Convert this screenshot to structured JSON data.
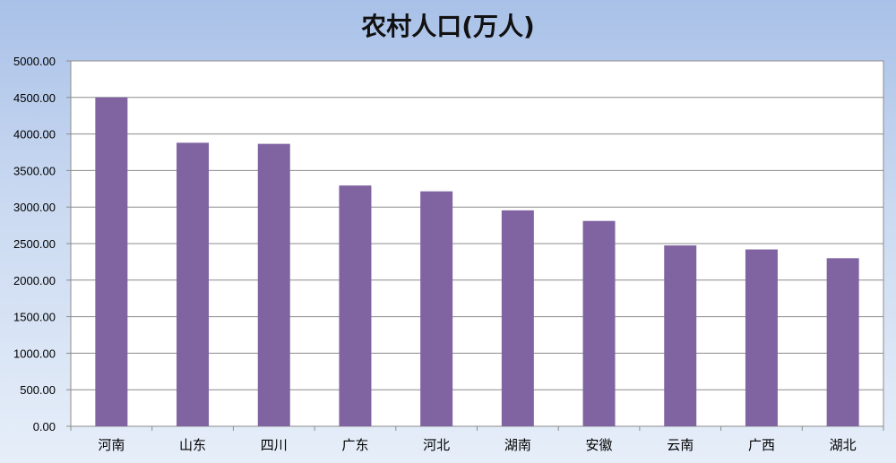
{
  "chart_data": {
    "type": "bar",
    "title": "农村人口(万人)",
    "categories": [
      "河南",
      "山东",
      "四川",
      "广东",
      "河北",
      "湖南",
      "安徽",
      "云南",
      "广西",
      "湖北"
    ],
    "values": [
      4500,
      3880,
      3865,
      3295,
      3215,
      2955,
      2810,
      2475,
      2420,
      2300
    ],
    "ylim": [
      0,
      5000
    ],
    "yticks": [
      "0.00",
      "500.00",
      "1000.00",
      "1500.00",
      "2000.00",
      "2500.00",
      "3000.00",
      "3500.00",
      "4000.00",
      "4500.00",
      "5000.00"
    ],
    "grid": true,
    "legend": "none",
    "bar_color": "#8064a2"
  }
}
